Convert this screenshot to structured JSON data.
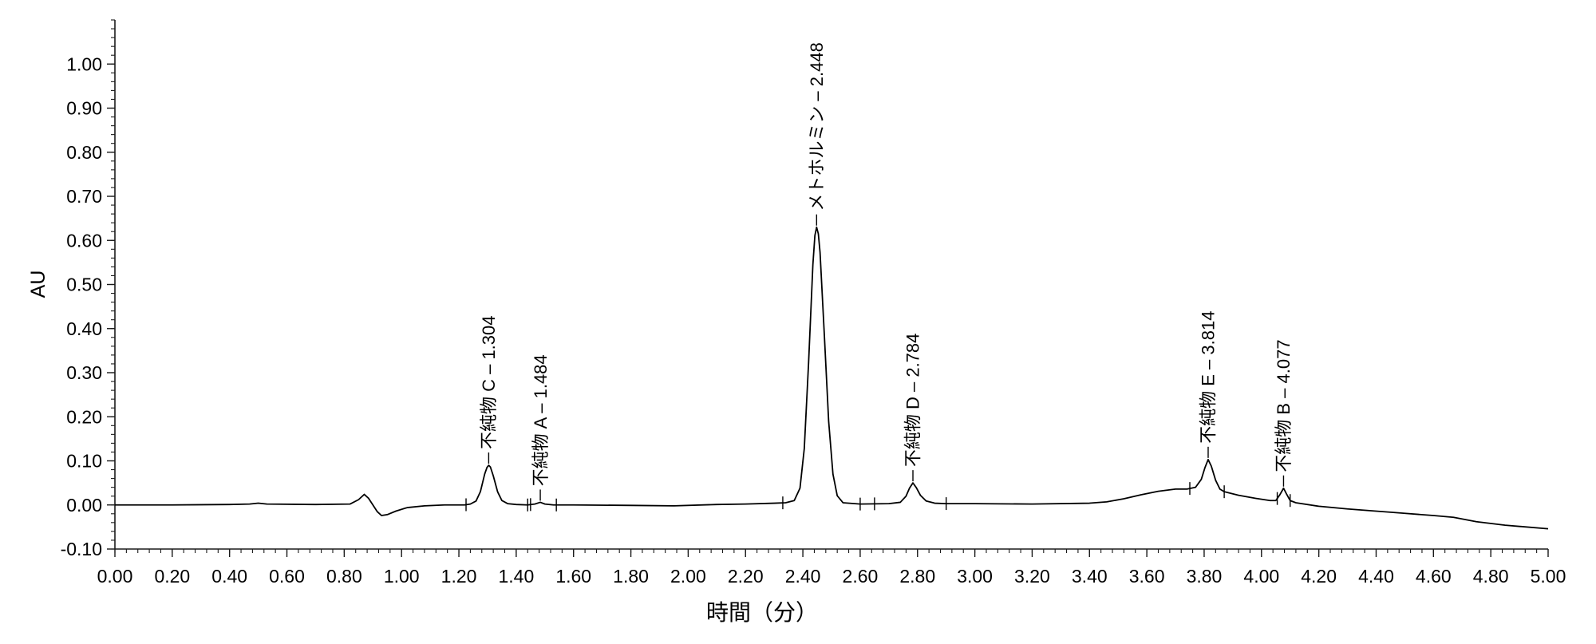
{
  "chart_data": {
    "type": "line",
    "xlabel": "時間（分）",
    "ylabel": "AU",
    "xlim": [
      0,
      5
    ],
    "ylim": [
      -0.1,
      1.1
    ],
    "grid": false,
    "x_ticks": [
      "0.00",
      "0.20",
      "0.40",
      "0.60",
      "0.80",
      "1.00",
      "1.20",
      "1.40",
      "1.60",
      "1.80",
      "2.00",
      "2.20",
      "2.40",
      "2.60",
      "2.80",
      "3.00",
      "3.20",
      "3.40",
      "3.60",
      "3.80",
      "4.00",
      "4.20",
      "4.40",
      "4.60",
      "4.80",
      "5.00"
    ],
    "y_ticks": [
      "-0.10",
      "0.00",
      "0.10",
      "0.20",
      "0.30",
      "0.40",
      "0.50",
      "0.60",
      "0.70",
      "0.80",
      "0.90",
      "1.00"
    ],
    "colors": {
      "trace": "#000000",
      "axis": "#1a1a1a"
    },
    "series": [
      {
        "x": [
          0.0,
          0.2,
          0.4,
          0.47,
          0.5,
          0.53,
          0.7,
          0.82,
          0.85,
          0.87,
          0.885,
          0.9,
          0.915,
          0.93,
          0.95,
          0.98,
          1.02,
          1.08,
          1.15,
          1.22,
          1.24,
          1.26,
          1.275,
          1.29,
          1.298,
          1.304,
          1.31,
          1.32,
          1.335,
          1.35,
          1.37,
          1.4,
          1.44,
          1.465,
          1.484,
          1.5,
          1.53,
          1.6,
          1.8,
          1.95,
          2.1,
          2.2,
          2.3,
          2.34,
          2.37,
          2.39,
          2.405,
          2.42,
          2.435,
          2.442,
          2.448,
          2.454,
          2.46,
          2.475,
          2.49,
          2.505,
          2.52,
          2.54,
          2.6,
          2.7,
          2.74,
          2.76,
          2.772,
          2.784,
          2.796,
          2.81,
          2.83,
          2.86,
          2.9,
          3.0,
          3.2,
          3.4,
          3.46,
          3.52,
          3.58,
          3.64,
          3.7,
          3.74,
          3.77,
          3.79,
          3.803,
          3.814,
          3.825,
          3.84,
          3.855,
          3.87,
          3.92,
          3.98,
          4.03,
          4.05,
          4.065,
          4.077,
          4.088,
          4.1,
          4.12,
          4.2,
          4.3,
          4.4,
          4.46,
          4.5,
          4.6,
          4.67,
          4.75,
          4.85,
          5.0
        ],
        "y": [
          0.0,
          0.0,
          0.001,
          0.002,
          0.004,
          0.002,
          0.001,
          0.002,
          0.012,
          0.024,
          0.015,
          0.0,
          -0.015,
          -0.024,
          -0.022,
          -0.014,
          -0.006,
          -0.002,
          0.0,
          0.0,
          0.002,
          0.009,
          0.03,
          0.07,
          0.085,
          0.09,
          0.086,
          0.066,
          0.03,
          0.01,
          0.003,
          0.001,
          0.0,
          0.002,
          0.006,
          0.002,
          0.0,
          0.0,
          -0.001,
          -0.002,
          0.001,
          0.002,
          0.004,
          0.005,
          0.01,
          0.038,
          0.128,
          0.322,
          0.545,
          0.611,
          0.63,
          0.615,
          0.573,
          0.385,
          0.19,
          0.07,
          0.021,
          0.005,
          0.002,
          0.003,
          0.006,
          0.02,
          0.038,
          0.05,
          0.039,
          0.022,
          0.009,
          0.004,
          0.003,
          0.003,
          0.002,
          0.004,
          0.007,
          0.014,
          0.023,
          0.031,
          0.036,
          0.036,
          0.04,
          0.058,
          0.085,
          0.103,
          0.088,
          0.056,
          0.036,
          0.03,
          0.022,
          0.015,
          0.01,
          0.01,
          0.024,
          0.038,
          0.024,
          0.01,
          0.005,
          -0.003,
          -0.009,
          -0.014,
          -0.017,
          -0.019,
          -0.024,
          -0.028,
          -0.038,
          -0.046,
          -0.054
        ]
      }
    ],
    "peaks": [
      {
        "label": "不純物 C – 1.304",
        "rt": 1.304
      },
      {
        "label": "不純物 A – 1.484",
        "rt": 1.484
      },
      {
        "label": "メトホルミン – 2.448",
        "rt": 2.448
      },
      {
        "label": "不純物 D – 2.784",
        "rt": 2.784
      },
      {
        "label": "不純物 E – 3.814",
        "rt": 3.814
      },
      {
        "label": "不純物 B – 4.077",
        "rt": 4.077
      }
    ],
    "integration_marks": [
      1.225,
      1.44,
      1.45,
      1.54,
      2.33,
      2.6,
      2.65,
      2.9,
      3.75,
      3.87,
      4.055,
      4.1
    ]
  }
}
